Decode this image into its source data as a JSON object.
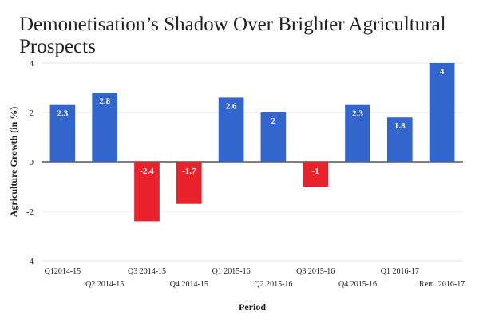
{
  "chart_data": {
    "type": "bar",
    "title": "Demonetisation’s Shadow Over Brighter Agricultural Prospects",
    "title_lines": [
      "Demonetisation’s Shadow Over Brighter Agricultural",
      "Prospects"
    ],
    "xlabel": "Period",
    "ylabel": "Agriculture Growth (in %)",
    "ylim": [
      -4,
      4
    ],
    "yticks": [
      4,
      2,
      0,
      -2,
      -4
    ],
    "categories": [
      "Q12014-15",
      "Q2 2014-15",
      "Q3 2014-15",
      "Q4 2014-15",
      "Q1 2015-16",
      "Q2 2015-16",
      "Q3 2015-16",
      "Q4 2015-16",
      "Q1 2016-17",
      "Rem. 2016-17"
    ],
    "values": [
      2.3,
      2.8,
      -2.4,
      -1.7,
      2.6,
      2,
      -1,
      2.3,
      1.8,
      4
    ],
    "value_labels": [
      "2.3",
      "2.8",
      "-2.4",
      "-1.7",
      "2.6",
      "2",
      "-1",
      "2.3",
      "1.8",
      "4"
    ],
    "colors": {
      "positive": "#3366cc",
      "negative": "#e8212b",
      "grid": "#cccccc",
      "zero_line": "#333333"
    },
    "legend": "none",
    "grid": false
  }
}
